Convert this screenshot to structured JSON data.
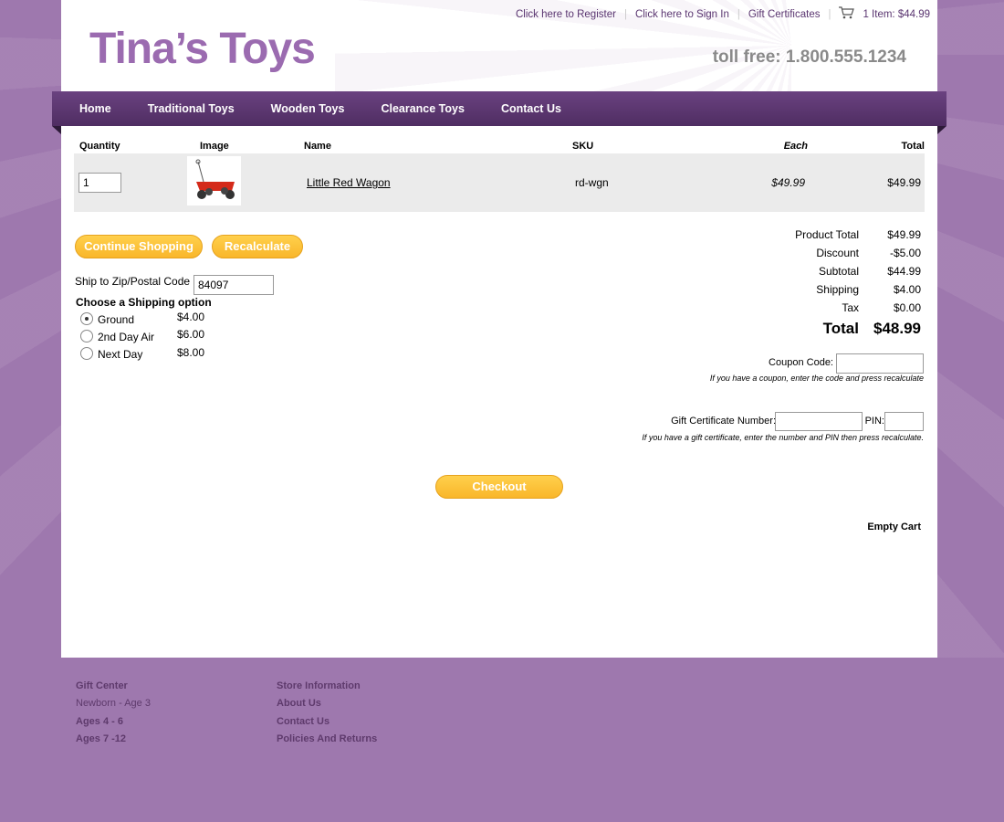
{
  "header": {
    "logo": "Tina’s Toys",
    "toll_free": "toll free: 1.800.555.1234",
    "links": [
      "Click here to Register",
      "Click here to Sign In",
      "Gift Certificates"
    ],
    "cart": "1 Item: $44.99"
  },
  "nav": [
    "Home",
    "Traditional Toys",
    "Wooden Toys",
    "Clearance Toys",
    "Contact Us"
  ],
  "table": {
    "headers": {
      "quantity": "Quantity",
      "image": "Image",
      "name": "Name",
      "sku": "SKU",
      "each": "Each",
      "total": "Total"
    },
    "rows": [
      {
        "quantity": "1",
        "name": "Little Red Wagon",
        "sku": "rd-wgn",
        "each": "$49.99",
        "total": "$49.99"
      }
    ]
  },
  "buttons": {
    "continue": "Continue Shopping",
    "recalculate": "Recalculate",
    "checkout": "Checkout",
    "empty": "Empty Cart"
  },
  "shipping": {
    "zip_label": "Ship to Zip/Postal Code",
    "zip": "84097",
    "title": "Choose a Shipping option",
    "options": [
      {
        "label": "Ground",
        "price": "$4.00",
        "selected": true
      },
      {
        "label": "2nd Day Air",
        "price": "$6.00"
      },
      {
        "label": "Next Day",
        "price": "$8.00"
      }
    ]
  },
  "totals": [
    {
      "label": "Product Total",
      "value": "$49.99"
    },
    {
      "label": "Discount",
      "value": "-$5.00"
    },
    {
      "label": "Subtotal",
      "value": "$44.99"
    },
    {
      "label": "Shipping",
      "value": "$4.00"
    },
    {
      "label": "Tax",
      "value": "$0.00"
    }
  ],
  "grand_total": {
    "label": "Total",
    "value": "$48.99"
  },
  "coupon": {
    "label": "Coupon Code:",
    "hint": "If you have a coupon, enter the code and press recalculate"
  },
  "gift": {
    "label": "Gift Certificate Number:",
    "pin": "PIN:",
    "hint": "If you have a gift certificate, enter the number and PIN then press recalculate."
  },
  "footer": {
    "col1": [
      "Gift Center",
      "Newborn - Age 3",
      "Ages 4 - 6",
      "Ages 7 -12"
    ],
    "col2": [
      "Store Information",
      "About Us",
      "Contact Us",
      "Policies And Returns"
    ]
  }
}
